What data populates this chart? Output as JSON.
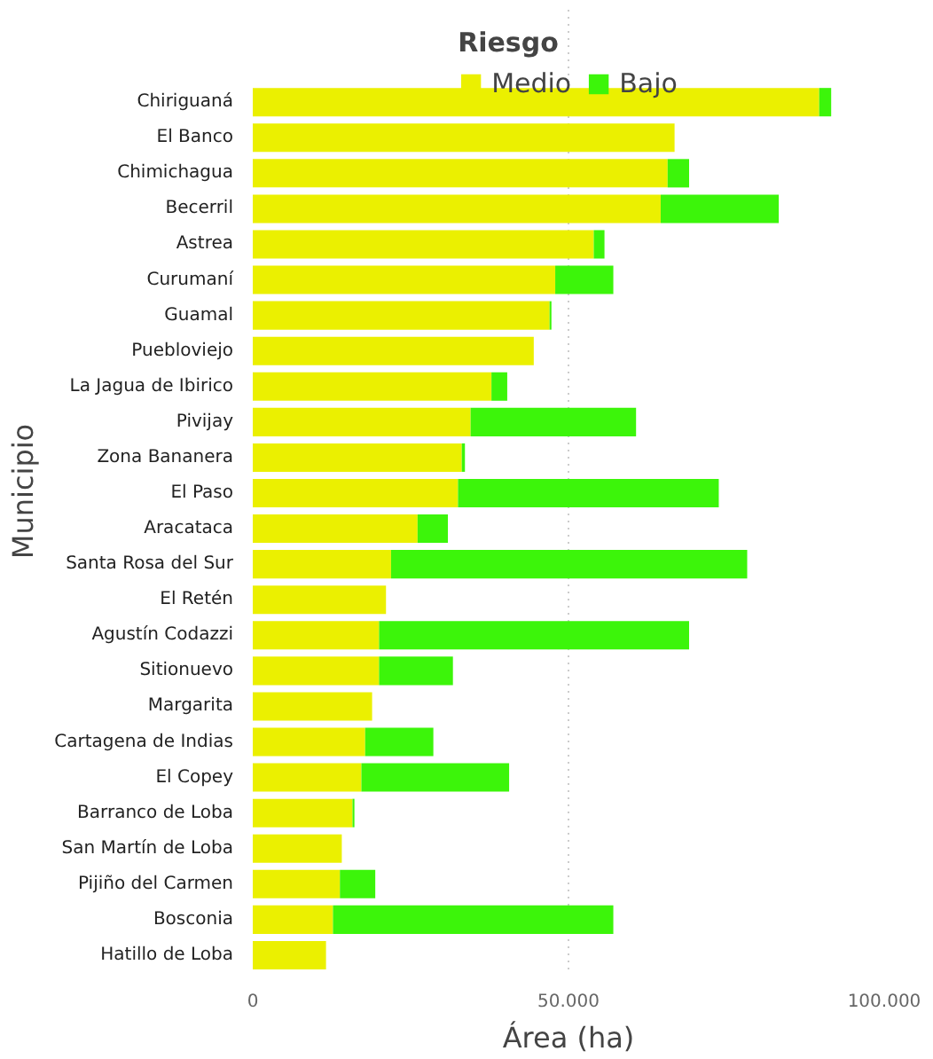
{
  "chart_data": {
    "type": "bar",
    "orientation": "horizontal",
    "stacked": true,
    "xlabel": "Área (ha)",
    "ylabel": "Municipio",
    "legend_title": "Riesgo",
    "legend": "top",
    "categories": [
      "Chiriguaná",
      "El Banco",
      "Chimichagua",
      "Becerril",
      "Astrea",
      "Curumaní",
      "Guamal",
      "Puebloviejo",
      "La Jagua de Ibirico",
      "Pivijay",
      "Zona Bananera",
      "El Paso",
      "Aracataca",
      "Santa Rosa del Sur",
      "El Retén",
      "Agustín Codazzi",
      "Sitionuevo",
      "Margarita",
      "Cartagena de Indias",
      "El Copey",
      "Barranco de Loba",
      "San Martín de Loba",
      "Pijiño del Carmen",
      "Bosconia",
      "Hatillo de Loba"
    ],
    "series": [
      {
        "name": "Medio",
        "color": "#ebf000",
        "values": [
          89700,
          66800,
          65700,
          64600,
          54000,
          47900,
          47000,
          44500,
          37800,
          34500,
          33100,
          32500,
          26100,
          21900,
          21100,
          20000,
          20000,
          18900,
          17800,
          17200,
          15800,
          14100,
          13800,
          12700,
          11600
        ]
      },
      {
        "name": "Bajo",
        "color": "#3cf50a",
        "values": [
          1900,
          null,
          3400,
          18700,
          1700,
          9200,
          300,
          null,
          2500,
          26200,
          500,
          41300,
          4800,
          56400,
          null,
          49100,
          11700,
          null,
          10800,
          23400,
          300,
          null,
          5600,
          44400,
          null
        ]
      }
    ],
    "xlim": [
      0,
      100000
    ],
    "xticks": [
      0,
      {
        "value": 50000,
        "label": "50.000"
      },
      {
        "value": 100000,
        "label": "100.000"
      }
    ],
    "grid": "x"
  }
}
